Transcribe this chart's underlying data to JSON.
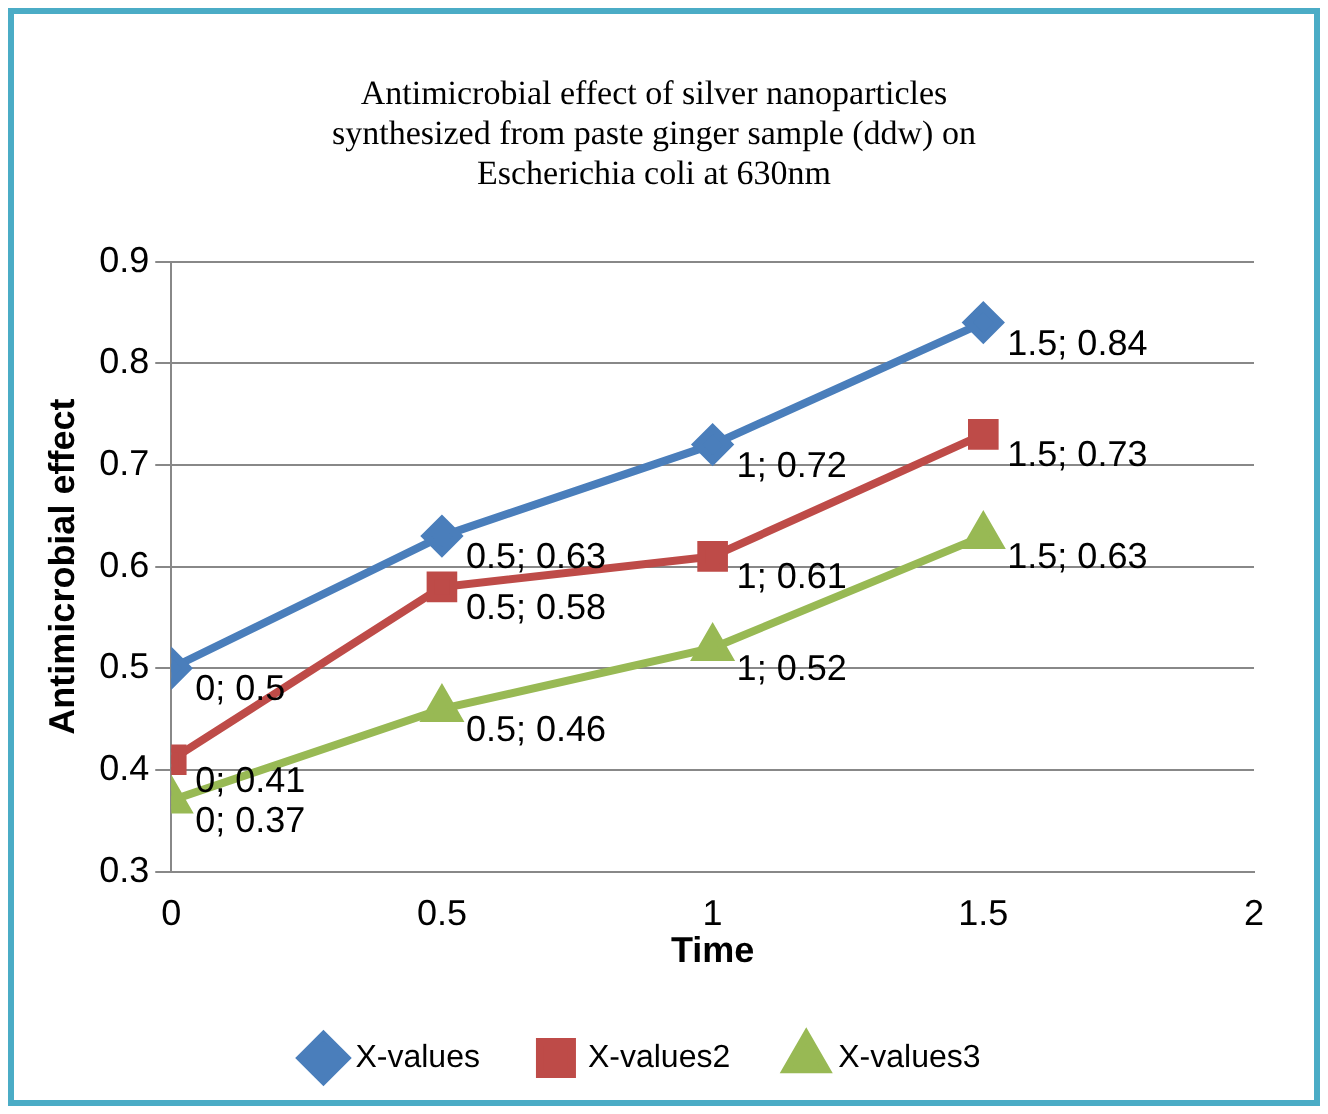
{
  "chart_data": {
    "type": "line",
    "title": "Antimicrobial  effect of silver nanoparticles synthesized from paste ginger sample (ddw) on Escherichia coli at 630nm",
    "xlabel": "Time",
    "ylabel": "Antimicrobial effect",
    "x": [
      0,
      0.5,
      1,
      1.5
    ],
    "xlim": [
      0,
      2
    ],
    "xticks": [
      0,
      0.5,
      1,
      1.5,
      2
    ],
    "ylim": [
      0.3,
      0.9
    ],
    "yticks": [
      0.3,
      0.4,
      0.5,
      0.6,
      0.7,
      0.8,
      0.9
    ],
    "grid": "y",
    "legend": "bottom",
    "line_style": "solid",
    "series": [
      {
        "name": "X-values",
        "color": "#4a7ebb",
        "marker": "diamond",
        "values": [
          0.5,
          0.63,
          0.72,
          0.84
        ],
        "value_labels": [
          "0; 0.5",
          "0.5; 0.63",
          "1; 0.72",
          "1.5; 0.84"
        ]
      },
      {
        "name": "X-values2",
        "color": "#be4b48",
        "marker": "square",
        "values": [
          0.41,
          0.58,
          0.61,
          0.73
        ],
        "value_labels": [
          "0; 0.41",
          "0.5; 0.58",
          "1; 0.61",
          "1.5; 0.73"
        ]
      },
      {
        "name": "X-values3",
        "color": "#98b954",
        "marker": "triangle",
        "values": [
          0.37,
          0.46,
          0.52,
          0.63
        ],
        "value_labels": [
          "0; 0.37",
          "0.5; 0.46",
          "1; 0.52",
          "1.5; 0.63"
        ]
      }
    ]
  }
}
